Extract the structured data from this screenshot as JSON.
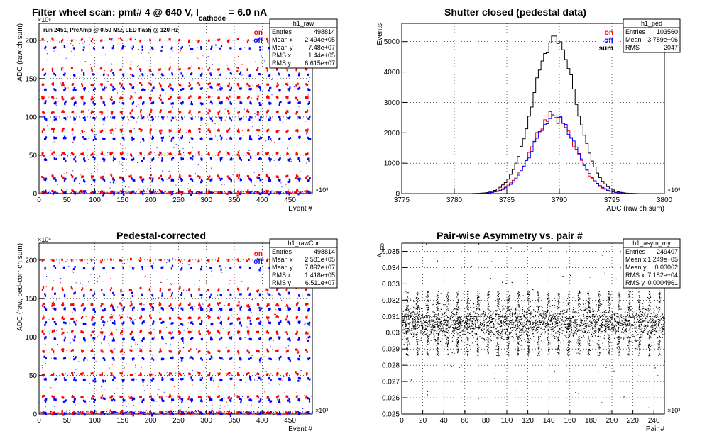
{
  "panels": [
    {
      "title": "Filter wheel scan: pmt#   4 @   640 V, I",
      "title_sub": "cathode",
      "title_tail": " = 6.0 nA",
      "annotation": "run 2451, PreAmp @ 0.50 MΩ, LED flash @  120 Hz",
      "legend": [
        {
          "label": "on",
          "color": "#ff0000"
        },
        {
          "label": "off",
          "color": "#0000ff"
        }
      ],
      "stats": {
        "name": "h1_raw",
        "rows": [
          [
            "Entries",
            "498814"
          ],
          [
            "Mean x",
            "2.494e+05"
          ],
          [
            "Mean y",
            "7.48e+07"
          ],
          [
            "RMS x",
            "1.44e+05"
          ],
          [
            "RMS y",
            "6.615e+07"
          ]
        ]
      },
      "chart_data": {
        "type": "scatter",
        "xlabel": "Event #",
        "ylabel": "ADC (raw ch sum)",
        "x_multiplier": "×10³",
        "y_multiplier": "×10⁶",
        "xlim": [
          0,
          490
        ],
        "ylim": [
          0,
          222
        ],
        "x_ticks": [
          0,
          50,
          100,
          150,
          200,
          250,
          300,
          350,
          400,
          450
        ],
        "y_ticks": [
          0,
          50,
          100,
          150,
          200
        ],
        "series": [
          {
            "name": "on",
            "color": "#ff0000",
            "levels": [
              200,
              162,
              142,
              125,
              106,
              82,
              52,
              22,
              2
            ]
          },
          {
            "name": "off",
            "color": "#0000ff",
            "levels": [
              190,
              155,
              136,
              118,
              98,
              72,
              45,
              18,
              1
            ]
          }
        ]
      }
    },
    {
      "title": "Shutter closed (pedestal data)",
      "legend": [
        {
          "label": "on",
          "color": "#ff0000"
        },
        {
          "label": "off",
          "color": "#0000ff"
        },
        {
          "label": "sum",
          "color": "#000000"
        }
      ],
      "stats": {
        "name": "h1_ped",
        "rows": [
          [
            "Entries",
            "103560"
          ],
          [
            "Mean",
            "3.789e+06"
          ],
          [
            "RMS",
            "2047"
          ]
        ]
      },
      "chart_data": {
        "type": "histogram",
        "xlabel": "ADC (raw ch sum)",
        "ylabel": "Events",
        "x_multiplier": "×10³",
        "xlim": [
          3775,
          3800
        ],
        "ylim": [
          0,
          5600
        ],
        "x_ticks": [
          3775,
          3780,
          3785,
          3790,
          3795,
          3800
        ],
        "y_ticks": [
          0,
          1000,
          2000,
          3000,
          4000,
          5000
        ],
        "series": [
          {
            "name": "sum",
            "color": "#000000",
            "peak": 5150,
            "mean": 3789.5,
            "sigma": 2.05
          },
          {
            "name": "on",
            "color": "#ff0000",
            "peak": 2600,
            "mean": 3789.4,
            "sigma": 2.05
          },
          {
            "name": "off",
            "color": "#0000ff",
            "peak": 2550,
            "mean": 3789.5,
            "sigma": 2.05
          }
        ]
      }
    },
    {
      "title": "Pedestal-corrected",
      "legend": [
        {
          "label": "on",
          "color": "#ff0000"
        },
        {
          "label": "off",
          "color": "#0000ff"
        }
      ],
      "stats": {
        "name": "h1_rawCor",
        "rows": [
          [
            "Entries",
            "498814"
          ],
          [
            "Mean x",
            "2.581e+05"
          ],
          [
            "Mean y",
            "7.892e+07"
          ],
          [
            "RMS x",
            "1.418e+05"
          ],
          [
            "RMS y",
            "6.511e+07"
          ]
        ]
      },
      "chart_data": {
        "type": "scatter",
        "xlabel": "Event #",
        "ylabel": "ADC (raw, ped-corr ch sum)",
        "x_multiplier": "×10³",
        "y_multiplier": "×10⁶",
        "xlim": [
          0,
          490
        ],
        "ylim": [
          0,
          222
        ],
        "x_ticks": [
          0,
          50,
          100,
          150,
          200,
          250,
          300,
          350,
          400,
          450
        ],
        "y_ticks": [
          0,
          50,
          100,
          150,
          200
        ],
        "series": [
          {
            "name": "on",
            "color": "#ff0000",
            "levels": [
              200,
              162,
              142,
              125,
              106,
              82,
              52,
              22,
              2
            ]
          },
          {
            "name": "off",
            "color": "#0000ff",
            "levels": [
              190,
              155,
              136,
              118,
              98,
              72,
              45,
              18,
              1
            ]
          }
        ]
      }
    },
    {
      "title": "Pair-wise Asymmetry vs. pair #",
      "stats": {
        "name": "h1_asym_my",
        "rows": [
          [
            "Entries",
            "249407"
          ],
          [
            "Mean x",
            "1.249e+05"
          ],
          [
            "Mean y",
            "0.03062"
          ],
          [
            "RMS x",
            "7.182e+04"
          ],
          [
            "RMS y",
            "0.0004961"
          ]
        ]
      },
      "chart_data": {
        "type": "scatter",
        "xlabel": "Pair #",
        "ylabel": "A",
        "ylabel_sub": "LED",
        "x_multiplier": "×10³",
        "xlim": [
          0,
          250
        ],
        "ylim": [
          0.025,
          0.0355
        ],
        "x_ticks": [
          0,
          20,
          40,
          60,
          80,
          100,
          120,
          140,
          160,
          180,
          200,
          220,
          240
        ],
        "y_ticks": [
          0.025,
          0.026,
          0.027,
          0.028,
          0.029,
          0.03,
          0.031,
          0.032,
          0.033,
          0.034,
          0.035
        ],
        "y_tick_labels": [
          "0.025",
          "0.026",
          "0.027",
          "0.028",
          "0.029",
          "0.03",
          "0.031",
          "0.032",
          "0.033",
          "0.034",
          "0.035"
        ],
        "series": [
          {
            "name": "",
            "color": "#000000",
            "center": 0.0306,
            "spread": 0.0005
          }
        ]
      }
    }
  ]
}
